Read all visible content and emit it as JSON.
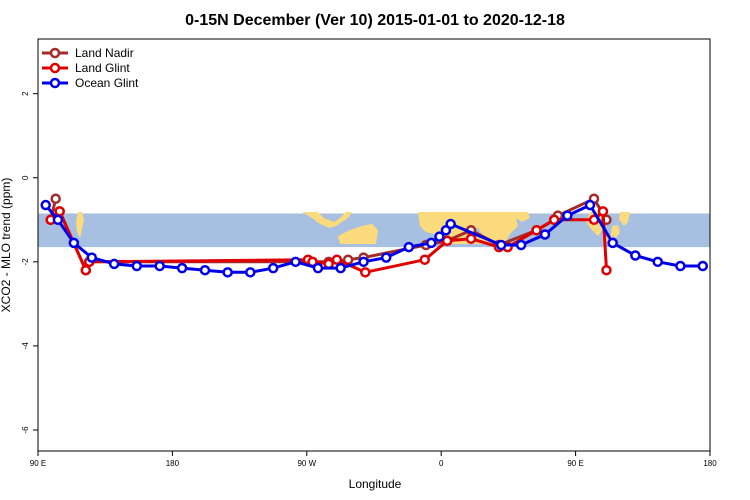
{
  "chart_data": {
    "type": "line",
    "title": "0-15N December (Ver 10)   2015-01-01 to 2020-12-18",
    "xlabel": "Longitude",
    "ylabel": "XCO2 - MLO trend (ppm)",
    "xlim": [
      -90,
      180
    ],
    "ylim": [
      -6.5,
      3.3
    ],
    "x_ticks": [
      {
        "value": -90,
        "label": "90 E"
      },
      {
        "value": -36,
        "label": "180"
      },
      {
        "value": 18,
        "label": "90 W"
      },
      {
        "value": 72,
        "label": "0"
      },
      {
        "value": 126,
        "label": "90 E"
      },
      {
        "value": 180,
        "label": "180"
      }
    ],
    "y_ticks": [
      {
        "value": 2,
        "label": "2"
      },
      {
        "value": 0,
        "label": "0"
      },
      {
        "value": -2,
        "label": "-2"
      },
      {
        "value": -4,
        "label": "-4"
      },
      {
        "value": -6,
        "label": "-6"
      }
    ],
    "band": {
      "y_min": -1.65,
      "y_max": -0.85,
      "color": "#a7bfe0",
      "land_color": "#fbdb7c"
    },
    "legend_position": "top-left",
    "series": [
      {
        "name": "Land Nadir",
        "color": "#a52a2a",
        "x": [
          -82.9,
          -84.9,
          -81.3,
          -70.8,
          -69.4,
          20.3,
          26.8,
          34.6,
          40.8,
          65.9,
          74.4,
          84.0,
          95.2,
          110.3,
          117.4,
          118.9,
          133.4,
          138.4
        ],
        "y": [
          -0.5,
          -1.0,
          -0.8,
          -2.2,
          -2.0,
          -2.0,
          -2.0,
          -1.95,
          -1.9,
          -1.6,
          -1.5,
          -1.25,
          -1.6,
          -1.25,
          -1.0,
          -0.9,
          -0.5,
          -1.0
        ]
      },
      {
        "name": "Land Glint",
        "color": "#e00000",
        "x": [
          -84.9,
          -81.3,
          -70.8,
          -69.4,
          18.5,
          20.3,
          26.8,
          30.1,
          41.5,
          65.4,
          74.4,
          84.0,
          95.2,
          98.7,
          110.3,
          117.4,
          133.4,
          137.0,
          138.4
        ],
        "y": [
          -1.0,
          -0.8,
          -2.2,
          -2.0,
          -1.95,
          -2.0,
          -2.05,
          -1.95,
          -2.25,
          -1.95,
          -1.5,
          -1.45,
          -1.65,
          -1.65,
          -1.25,
          -1.0,
          -1.0,
          -0.8,
          -2.2
        ]
      },
      {
        "name": "Ocean Glint",
        "color": "#0000e8",
        "x": [
          -86.9,
          -82.0,
          -75.6,
          -68.4,
          -59.4,
          -50.3,
          -41.1,
          -32.1,
          -22.9,
          -13.8,
          -4.7,
          4.5,
          13.5,
          22.5,
          31.6,
          40.8,
          49.9,
          59.0,
          68.0,
          71.3,
          73.9,
          75.8,
          96.1,
          104.1,
          113.7,
          122.7,
          131.8,
          140.9,
          150.0,
          159.0,
          168.1,
          177.1
        ],
        "y": [
          -0.65,
          -1.0,
          -1.55,
          -1.9,
          -2.05,
          -2.1,
          -2.1,
          -2.15,
          -2.2,
          -2.25,
          -2.25,
          -2.15,
          -2.0,
          -2.15,
          -2.15,
          -2.0,
          -1.9,
          -1.65,
          -1.55,
          -1.4,
          -1.25,
          -1.1,
          -1.6,
          -1.6,
          -1.35,
          -0.9,
          -0.65,
          -1.55,
          -1.85,
          -2.0,
          -2.1,
          -2.1
        ]
      }
    ]
  }
}
